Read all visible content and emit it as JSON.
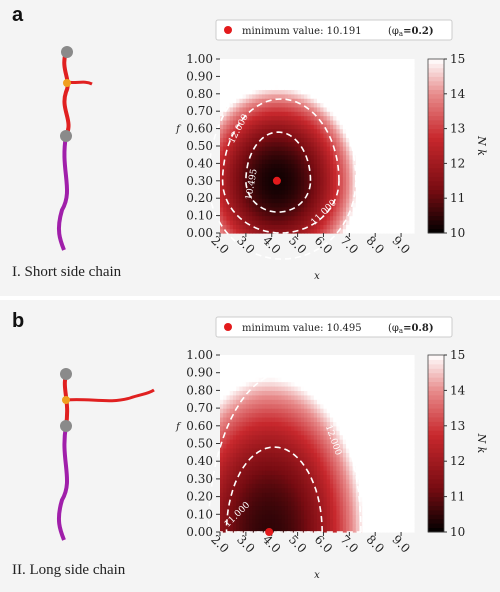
{
  "panels": [
    {
      "tag": "a",
      "caption": "I. Short side chain",
      "legend_text": "minimum value: 10.191",
      "legend_param": "(φ",
      "legend_sub": "a",
      "legend_val": "=0.2)"
    },
    {
      "tag": "b",
      "caption": "II. Long side chain",
      "legend_text": "minimum value: 10.495",
      "legend_param": "(φ",
      "legend_sub": "a",
      "legend_val": "=0.8)"
    }
  ],
  "colors": {
    "min_marker": "#e31a1c",
    "contour": "#ffffff",
    "backbone": "#a01faa",
    "side_chain": "#e02020",
    "bead": "#8a8a8a",
    "junction": "#f0a020"
  },
  "chart_data": [
    {
      "type": "heatmap",
      "xlabel": "x",
      "ylabel": "f",
      "colorbar_label": "N k",
      "x_ticks": [
        "2.0",
        "3.0",
        "4.0",
        "5.0",
        "6.0",
        "7.0",
        "8.0",
        "9.0"
      ],
      "y_ticks": [
        "0.00",
        "0.10",
        "0.20",
        "0.30",
        "0.40",
        "0.50",
        "0.60",
        "0.70",
        "0.80",
        "0.90",
        "1.00"
      ],
      "colorbar_ticks": [
        "10",
        "11",
        "12",
        "13",
        "14",
        "15"
      ],
      "xlim": [
        2.0,
        9.5
      ],
      "ylim": [
        0.0,
        1.0
      ],
      "clim": [
        10,
        15
      ],
      "minimum": {
        "x": 4.2,
        "f": 0.3,
        "value": 10.191
      },
      "contour_labels": [
        "12.000",
        "10.495",
        "11.000"
      ]
    },
    {
      "type": "heatmap",
      "xlabel": "x",
      "ylabel": "f",
      "colorbar_label": "N k",
      "x_ticks": [
        "2.0",
        "3.0",
        "4.0",
        "5.0",
        "6.0",
        "7.0",
        "8.0",
        "9.0"
      ],
      "y_ticks": [
        "0.00",
        "0.10",
        "0.20",
        "0.30",
        "0.40",
        "0.50",
        "0.60",
        "0.70",
        "0.80",
        "0.90",
        "1.00"
      ],
      "colorbar_ticks": [
        "10",
        "11",
        "12",
        "13",
        "14",
        "15"
      ],
      "xlim": [
        2.0,
        9.5
      ],
      "ylim": [
        0.0,
        1.0
      ],
      "clim": [
        10,
        15
      ],
      "minimum": {
        "x": 3.9,
        "f": 0.0,
        "value": 10.495
      },
      "contour_labels": [
        "12.000",
        "11.000"
      ]
    }
  ]
}
